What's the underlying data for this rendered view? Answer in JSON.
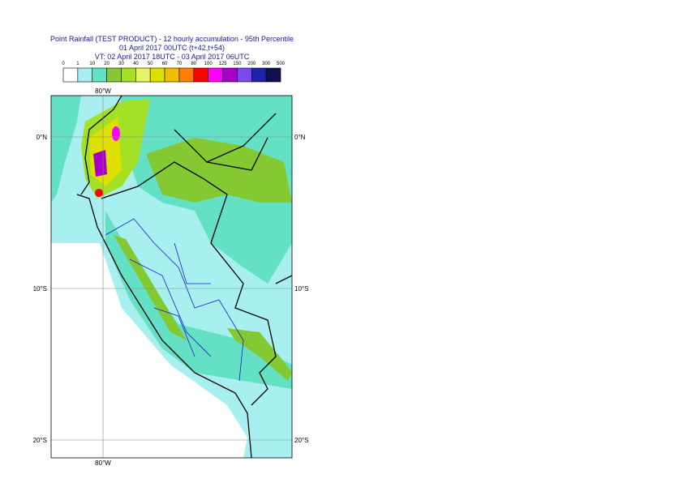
{
  "header": {
    "lines": [
      "Point Rainfall (TEST PRODUCT) - 12 hourly accumulation - 95th Percentile",
      "01 April 2017 00UTC (t+42,t+54)",
      "VT: 02 April 2017 18UTC - 03 April 2017 06UTC"
    ]
  },
  "legend": {
    "labels": [
      "0",
      "1",
      "10",
      "20",
      "30",
      "40",
      "50",
      "60",
      "70",
      "80",
      "100",
      "125",
      "150",
      "200",
      "300",
      "500"
    ],
    "colors": [
      "#ffffff",
      "#a8f0f0",
      "#64e0c4",
      "#84c832",
      "#a4e024",
      "#e4f464",
      "#e0e000",
      "#f0c000",
      "#ff8000",
      "#ff0000",
      "#ff00ff",
      "#a800c8",
      "#7c48f0",
      "#2024a8",
      "#10104c"
    ]
  },
  "map": {
    "lon_labels": [
      "80°W"
    ],
    "lat_labels": [
      "0°N",
      "10°S",
      "20°S"
    ]
  }
}
